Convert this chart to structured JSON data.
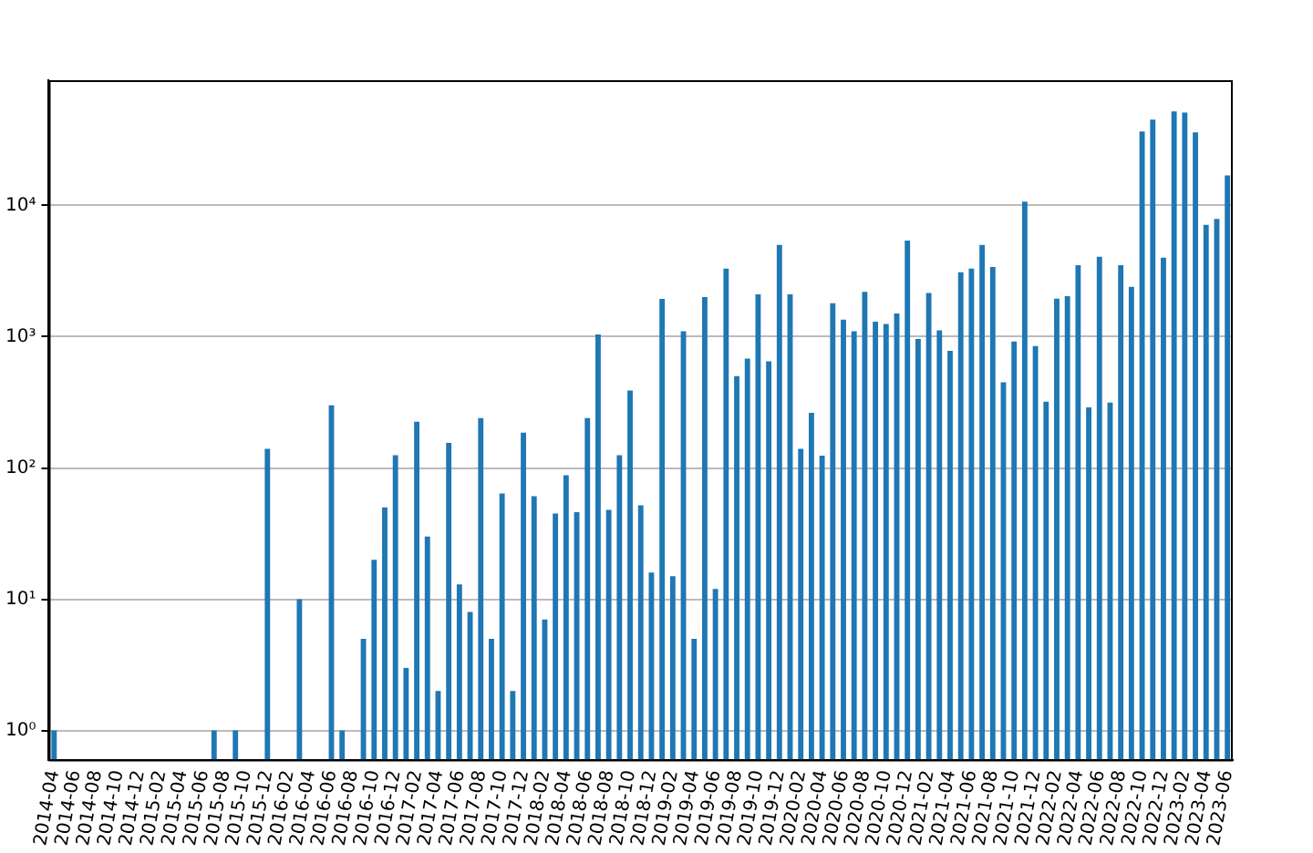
{
  "chart_data": {
    "type": "bar",
    "categories": [
      "2014-04",
      null,
      "2014-06",
      null,
      "2014-08",
      null,
      "2014-10",
      null,
      "2014-12",
      null,
      "2015-02",
      null,
      "2015-04",
      null,
      "2015-06",
      null,
      "2015-08",
      null,
      "2015-10",
      null,
      "2015-12",
      null,
      "2016-02",
      null,
      "2016-04",
      null,
      "2016-06",
      null,
      "2016-08",
      null,
      "2016-10",
      null,
      "2016-12",
      null,
      "2017-02",
      null,
      "2017-04",
      null,
      "2017-06",
      null,
      "2017-08",
      null,
      "2017-10",
      null,
      "2017-12",
      null,
      "2018-02",
      null,
      "2018-04",
      null,
      "2018-06",
      null,
      "2018-08",
      null,
      "2018-10",
      null,
      "2018-12",
      null,
      "2019-02",
      null,
      "2019-04",
      null,
      "2019-06",
      null,
      "2019-08",
      null,
      "2019-10",
      null,
      "2019-12",
      null,
      "2020-02",
      null,
      "2020-04",
      null,
      "2020-06",
      null,
      "2020-08",
      null,
      "2020-10",
      null,
      "2020-12",
      null,
      "2021-02",
      null,
      "2021-04",
      null,
      "2021-06",
      null,
      "2021-08",
      null,
      "2021-10",
      null,
      "2021-12",
      null,
      "2022-02",
      null,
      "2022-04",
      null,
      "2022-06",
      null,
      "2022-08",
      null,
      "2022-10",
      null,
      "2022-12",
      null,
      "2023-02",
      null,
      "2023-04",
      null,
      "2023-06"
    ],
    "series": [
      {
        "color": "#1f77b4",
        "values": [
          1,
          null,
          null,
          null,
          null,
          null,
          null,
          null,
          null,
          null,
          null,
          null,
          null,
          null,
          null,
          1,
          null,
          1,
          null,
          null,
          140,
          null,
          null,
          10,
          null,
          null,
          300,
          1,
          null,
          5,
          20,
          50,
          125,
          3,
          225,
          30,
          2,
          155,
          13,
          8,
          240,
          5,
          64,
          2,
          186,
          61,
          7,
          45,
          88,
          46,
          240,
          1040,
          48,
          125,
          390,
          52,
          16,
          1940,
          15,
          1100,
          5,
          2000,
          12,
          3300,
          500,
          680,
          2100,
          650,
          5000,
          2100,
          140,
          263,
          124,
          1800,
          1350,
          1100,
          2200,
          1300,
          1250,
          1500,
          5400,
          960,
          2150,
          1120,
          780,
          3100,
          3300,
          5000,
          3400,
          450,
          920,
          10700,
          850,
          320,
          1950,
          2040,
          3500,
          290,
          4060,
          315,
          3500,
          2400,
          36600,
          45000,
          4000,
          52000,
          51000,
          36000,
          7100,
          7900,
          16900
        ]
      }
    ],
    "log": "y",
    "ylim": [
      0.6,
      90000
    ],
    "yticks": [
      {
        "value": 1,
        "label": "10⁰"
      },
      {
        "value": 10,
        "label": "10¹"
      },
      {
        "value": 100,
        "label": "10²"
      },
      {
        "value": 1000,
        "label": "10³"
      },
      {
        "value": 10000,
        "label": "10⁴"
      }
    ],
    "grid": "y",
    "legend": false
  }
}
